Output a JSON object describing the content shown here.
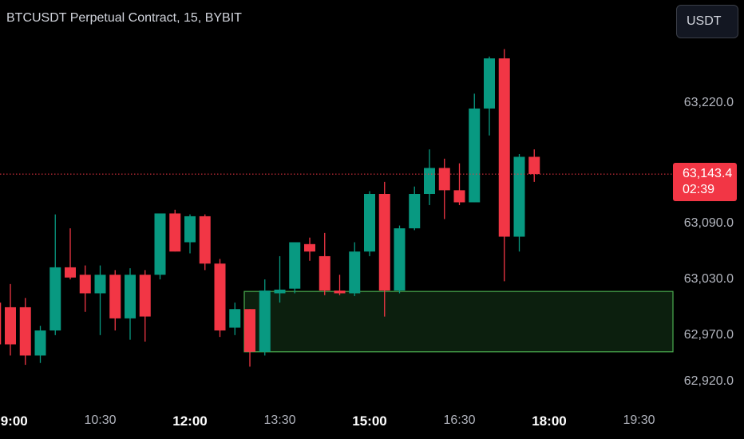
{
  "header": {
    "title": "BTCUSDT Perpetual Contract, 15, BYBIT",
    "currency_button": "USDT"
  },
  "price_tag": {
    "price": "63,143.4",
    "countdown": "02:39"
  },
  "colors": {
    "up": "#089981",
    "down": "#f23645",
    "zone_border": "#4caf50",
    "zone_fill": "#0c1f0e",
    "last_price_line": "#f23645"
  },
  "chart_data": {
    "type": "candlestick",
    "symbol": "BTCUSDT",
    "interval": "15",
    "exchange": "BYBIT",
    "y_axis": {
      "ticks": [
        {
          "value": 63220,
          "label": "63,220.0"
        },
        {
          "value": 63090,
          "label": "63,090.0"
        },
        {
          "value": 63030,
          "label": "63,030.0"
        },
        {
          "value": 62970,
          "label": "62,970.0"
        },
        {
          "value": 62920,
          "label": "62,920.0"
        }
      ]
    },
    "x_axis": {
      "ticks": [
        {
          "time": "09:00",
          "label": "09:00",
          "major": true
        },
        {
          "time": "10:30",
          "label": "10:30",
          "major": false
        },
        {
          "time": "12:00",
          "label": "12:00",
          "major": true
        },
        {
          "time": "13:30",
          "label": "13:30",
          "major": false
        },
        {
          "time": "15:00",
          "label": "15:00",
          "major": true
        },
        {
          "time": "16:30",
          "label": "16:30",
          "major": false
        },
        {
          "time": "18:00",
          "label": "18:00",
          "major": true
        },
        {
          "time": "19:30",
          "label": "19:30",
          "major": false
        }
      ]
    },
    "last_price": 63143.4,
    "zone": {
      "top": 63017,
      "bottom": 62952,
      "start_time": "13:00"
    },
    "candles": [
      {
        "t": "08:45",
        "o": 63005,
        "h": 63040,
        "l": 62945,
        "c": 62960
      },
      {
        "t": "09:00",
        "o": 63000,
        "h": 63025,
        "l": 62948,
        "c": 62960
      },
      {
        "t": "09:15",
        "o": 63000,
        "h": 63010,
        "l": 62938,
        "c": 62948
      },
      {
        "t": "09:30",
        "o": 62948,
        "h": 62980,
        "l": 62940,
        "c": 62975
      },
      {
        "t": "09:45",
        "o": 62975,
        "h": 63100,
        "l": 62970,
        "c": 63043
      },
      {
        "t": "10:00",
        "o": 63043,
        "h": 63085,
        "l": 63030,
        "c": 63032
      },
      {
        "t": "10:15",
        "o": 63035,
        "h": 63045,
        "l": 62995,
        "c": 63015
      },
      {
        "t": "10:30",
        "o": 63015,
        "h": 63045,
        "l": 62970,
        "c": 63035
      },
      {
        "t": "10:45",
        "o": 63035,
        "h": 63040,
        "l": 62975,
        "c": 62988
      },
      {
        "t": "11:00",
        "o": 62988,
        "h": 63042,
        "l": 62965,
        "c": 63035
      },
      {
        "t": "11:15",
        "o": 63035,
        "h": 63040,
        "l": 62963,
        "c": 62990
      },
      {
        "t": "11:30",
        "o": 63035,
        "h": 63100,
        "l": 63030,
        "c": 63101
      },
      {
        "t": "11:45",
        "o": 63101,
        "h": 63105,
        "l": 63060,
        "c": 63060
      },
      {
        "t": "12:00",
        "o": 63070,
        "h": 63100,
        "l": 63058,
        "c": 63098
      },
      {
        "t": "12:15",
        "o": 63098,
        "h": 63100,
        "l": 63040,
        "c": 63047
      },
      {
        "t": "12:30",
        "o": 63047,
        "h": 63052,
        "l": 62968,
        "c": 62975
      },
      {
        "t": "12:45",
        "o": 62978,
        "h": 63005,
        "l": 62970,
        "c": 62998
      },
      {
        "t": "13:00",
        "o": 62998,
        "h": 62998,
        "l": 62936,
        "c": 62952
      },
      {
        "t": "13:15",
        "o": 62952,
        "h": 63030,
        "l": 62948,
        "c": 63018
      },
      {
        "t": "13:30",
        "o": 63015,
        "h": 63055,
        "l": 63005,
        "c": 63019
      },
      {
        "t": "13:45",
        "o": 63020,
        "h": 63070,
        "l": 63015,
        "c": 63070
      },
      {
        "t": "14:00",
        "o": 63068,
        "h": 63075,
        "l": 63050,
        "c": 63060
      },
      {
        "t": "14:15",
        "o": 63055,
        "h": 63080,
        "l": 63013,
        "c": 63018
      },
      {
        "t": "14:30",
        "o": 63018,
        "h": 63035,
        "l": 63013,
        "c": 63015
      },
      {
        "t": "14:45",
        "o": 63015,
        "h": 63070,
        "l": 63012,
        "c": 63060
      },
      {
        "t": "15:00",
        "o": 63060,
        "h": 63125,
        "l": 63055,
        "c": 63122
      },
      {
        "t": "15:15",
        "o": 63122,
        "h": 63135,
        "l": 62990,
        "c": 63018
      },
      {
        "t": "15:30",
        "o": 63018,
        "h": 63088,
        "l": 63015,
        "c": 63085
      },
      {
        "t": "15:45",
        "o": 63085,
        "h": 63130,
        "l": 63083,
        "c": 63122
      },
      {
        "t": "16:00",
        "o": 63122,
        "h": 63170,
        "l": 63110,
        "c": 63150
      },
      {
        "t": "16:15",
        "o": 63150,
        "h": 63160,
        "l": 63095,
        "c": 63126
      },
      {
        "t": "16:30",
        "o": 63126,
        "h": 63155,
        "l": 63110,
        "c": 63113
      },
      {
        "t": "16:45",
        "o": 63113,
        "h": 63230,
        "l": 63113,
        "c": 63214
      },
      {
        "t": "17:00",
        "o": 63214,
        "h": 63270,
        "l": 63185,
        "c": 63268
      },
      {
        "t": "17:15",
        "o": 63268,
        "h": 63278,
        "l": 63028,
        "c": 63076
      },
      {
        "t": "17:30",
        "o": 63076,
        "h": 63165,
        "l": 63060,
        "c": 63162
      },
      {
        "t": "17:45",
        "o": 63162,
        "h": 63170,
        "l": 63135,
        "c": 63143.4
      }
    ]
  }
}
